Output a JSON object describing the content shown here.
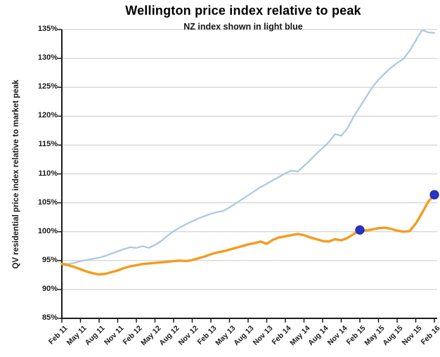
{
  "chart_data": {
    "type": "line",
    "title": "Wellington price index relative to peak",
    "subtitle": "NZ index shown in light blue",
    "y_axis_title": "QV residential price index relative to market peak",
    "ylim": [
      85,
      135
    ],
    "y_tick_step": 5,
    "y_tick_labels": [
      "135%",
      "130%",
      "125%",
      "120%",
      "115%",
      "110%",
      "105%",
      "100%",
      "95%",
      "90%",
      "85%"
    ],
    "x_tick_labels": [
      "Feb 11",
      "May 11",
      "Aug 11",
      "Nov 11",
      "Feb 12",
      "May 12",
      "Aug 12",
      "Nov 12",
      "Feb 13",
      "May 13",
      "Aug 13",
      "Nov 13",
      "Feb 14",
      "May 14",
      "Aug 14",
      "Nov 14",
      "Feb 15",
      "May 15",
      "Aug 15",
      "Nov 15",
      "Feb 16"
    ],
    "months_per_tick": 3,
    "x_is_monthly": true,
    "grid": "horizontal",
    "legend": "none",
    "series": [
      {
        "name": "NZ index",
        "color": "#ACC9E0",
        "line_width": 2.3,
        "values": [
          94.5,
          94.4,
          94.6,
          94.9,
          95.1,
          95.3,
          95.5,
          95.8,
          96.2,
          96.6,
          97.0,
          97.3,
          97.2,
          97.5,
          97.2,
          97.7,
          98.4,
          99.3,
          100.1,
          100.7,
          101.3,
          101.8,
          102.3,
          102.7,
          103.1,
          103.4,
          103.6,
          104.2,
          104.9,
          105.6,
          106.3,
          107.0,
          107.7,
          108.3,
          108.9,
          109.5,
          110.1,
          110.6,
          110.4,
          111.4,
          112.4,
          113.5,
          114.5,
          115.5,
          116.9,
          116.6,
          117.9,
          119.9,
          121.6,
          123.3,
          125.0,
          126.3,
          127.4,
          128.4,
          129.2,
          129.9,
          131.3,
          133.1,
          134.9,
          134.5,
          134.4
        ]
      },
      {
        "name": "Wellington index",
        "color": "#F59B1E",
        "line_width": 3.4,
        "values": [
          94.4,
          94.2,
          93.9,
          93.5,
          93.1,
          92.8,
          92.6,
          92.7,
          93.0,
          93.3,
          93.7,
          94.0,
          94.2,
          94.4,
          94.5,
          94.6,
          94.7,
          94.8,
          94.9,
          95.0,
          94.9,
          95.1,
          95.4,
          95.7,
          96.1,
          96.4,
          96.6,
          96.9,
          97.2,
          97.5,
          97.8,
          98.0,
          98.3,
          97.9,
          98.6,
          99.0,
          99.2,
          99.4,
          99.6,
          99.4,
          99.0,
          98.7,
          98.4,
          98.3,
          98.7,
          98.5,
          98.9,
          99.6,
          100.3,
          100.2,
          100.4,
          100.6,
          100.7,
          100.5,
          100.2,
          100.0,
          100.1,
          101.4,
          103.2,
          105.2,
          106.4
        ]
      }
    ],
    "markers": [
      {
        "series": "Wellington index",
        "at_label": "Feb 15",
        "month_index": 48,
        "value": 100.3,
        "color": "#2733C8"
      },
      {
        "series": "Wellington index",
        "at_label": "Feb 16",
        "month_index": 60,
        "value": 106.4,
        "color": "#2733C8"
      }
    ],
    "colors": {
      "gridline": "#C9C9C9",
      "axis": "#1C1C1C",
      "text": "#111111",
      "background": "#FFFFFF",
      "marker_blue": "#2733C8",
      "nz_light_blue": "#ACC9E0",
      "wellington_orange": "#F59B1E"
    }
  }
}
